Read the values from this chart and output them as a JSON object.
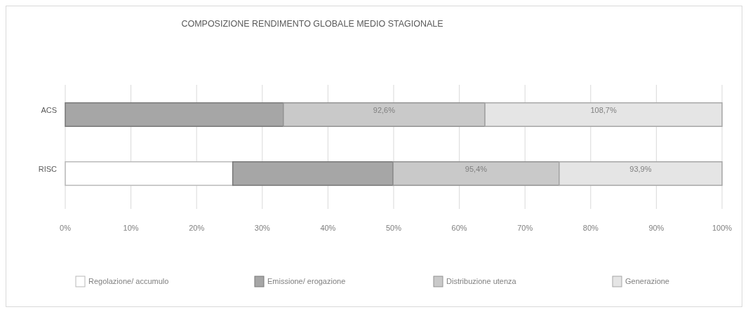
{
  "chart_data": {
    "type": "bar",
    "orientation": "horizontal",
    "stacked": true,
    "title": "COMPOSIZIONE  RENDIMENTO  GLOBALE MEDIO STAGIONALE",
    "categories": [
      "ACS",
      "RISC"
    ],
    "series": [
      {
        "name": "Regolazione/ accumulo",
        "color": "#ffffff",
        "values": [
          0,
          25.5
        ]
      },
      {
        "name": "Emissione/ erogazione",
        "color": "#a6a6a6",
        "values": [
          33.2,
          24.4
        ]
      },
      {
        "name": "Distribuzione utenza",
        "color": "#c9c9c9",
        "values": [
          30.7,
          25.3
        ]
      },
      {
        "name": "Generazione",
        "color": "#e5e5e5",
        "values": [
          36.1,
          24.8
        ]
      }
    ],
    "annotations": [
      "92,6%",
      "108,7%",
      "95,4%",
      "93,9%"
    ],
    "xlim": [
      0,
      100
    ],
    "xticks": [
      {
        "value": 0,
        "label": "0%"
      },
      {
        "value": 10,
        "label": "10%"
      },
      {
        "value": 20,
        "label": "20%"
      },
      {
        "value": 30,
        "label": "30%"
      },
      {
        "value": 40,
        "label": "40%"
      },
      {
        "value": 50,
        "label": "50%"
      },
      {
        "value": 60,
        "label": "60%"
      },
      {
        "value": 70,
        "label": "70%"
      },
      {
        "value": 80,
        "label": "80%"
      },
      {
        "value": 90,
        "label": "90%"
      },
      {
        "value": 100,
        "label": "100%"
      }
    ],
    "grid": "x",
    "legend": "bottom"
  }
}
